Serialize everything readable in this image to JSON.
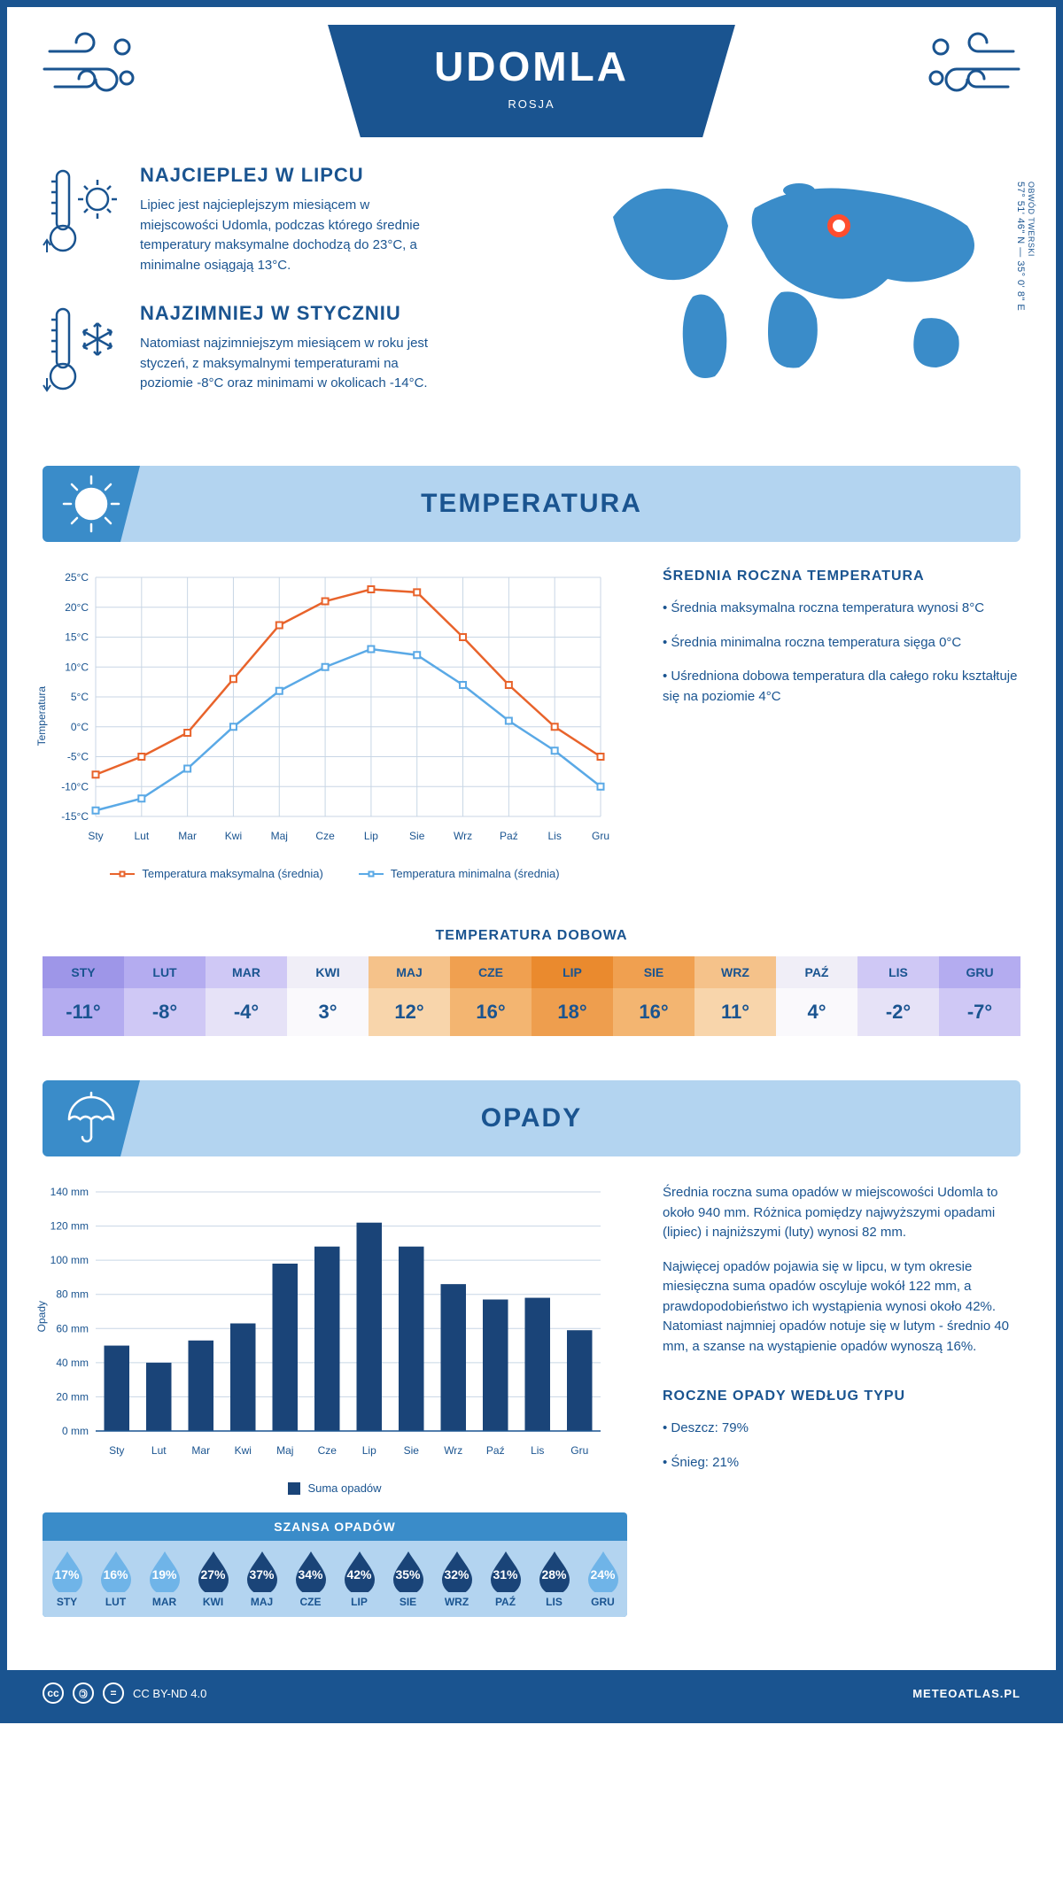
{
  "header": {
    "title": "UDOMLA",
    "subtitle": "ROSJA"
  },
  "coords": {
    "lat": "57° 51' 46\" N",
    "lon": "35° 0' 8\" E",
    "region": "OBWÓD TWERSKI"
  },
  "intro": {
    "warm": {
      "title": "NAJCIEPLEJ W LIPCU",
      "text": "Lipiec jest najcieplejszym miesiącem w miejscowości Udomla, podczas którego średnie temperatury maksymalne dochodzą do 23°C, a minimalne osiągają 13°C."
    },
    "cold": {
      "title": "NAJZIMNIEJ W STYCZNIU",
      "text": "Natomiast najzimniejszym miesiącem w roku jest styczeń, z maksymalnymi temperaturami na poziomie -8°C oraz minimami w okolicach -14°C."
    }
  },
  "temperature": {
    "banner": "TEMPERATURA",
    "side_title": "ŚREDNIA ROCZNA TEMPERATURA",
    "side_points": [
      "• Średnia maksymalna roczna temperatura wynosi 8°C",
      "• Średnia minimalna roczna temperatura sięga 0°C",
      "• Uśredniona dobowa temperatura dla całego roku kształtuje się na poziomie 4°C"
    ],
    "chart": {
      "type": "line",
      "months": [
        "Sty",
        "Lut",
        "Mar",
        "Kwi",
        "Maj",
        "Cze",
        "Lip",
        "Sie",
        "Wrz",
        "Paź",
        "Lis",
        "Gru"
      ],
      "ylim": [
        -15,
        25
      ],
      "ytick_step": 5,
      "ylabel": "Temperatura",
      "y_unit": "°C",
      "grid_color": "#c8d6e5",
      "background_color": "#ffffff",
      "series": [
        {
          "name": "Temperatura maksymalna (średnia)",
          "color": "#e8632b",
          "values": [
            -8,
            -5,
            -1,
            8,
            17,
            21,
            23,
            22.5,
            15,
            7,
            0,
            -5
          ]
        },
        {
          "name": "Temperatura minimalna (średnia)",
          "color": "#5aa9e6",
          "values": [
            -14,
            -12,
            -7,
            0,
            6,
            10,
            13,
            12,
            7,
            1,
            -4,
            -10
          ]
        }
      ]
    },
    "daily": {
      "title": "TEMPERATURA DOBOWA",
      "months": [
        "STY",
        "LUT",
        "MAR",
        "KWI",
        "MAJ",
        "CZE",
        "LIP",
        "SIE",
        "WRZ",
        "PAŹ",
        "LIS",
        "GRU"
      ],
      "values": [
        "-11°",
        "-8°",
        "-4°",
        "3°",
        "12°",
        "16°",
        "18°",
        "16°",
        "11°",
        "4°",
        "-2°",
        "-7°"
      ],
      "head_colors": [
        "#9e96e8",
        "#b4acf0",
        "#cfc8f5",
        "#f0eef7",
        "#f5c28a",
        "#f0a050",
        "#ea8a2e",
        "#f0a050",
        "#f5c28a",
        "#f0eef7",
        "#cfc8f5",
        "#b4acf0"
      ],
      "val_colors": [
        "#b4acf0",
        "#cfc8f5",
        "#e6e2f7",
        "#faf9fc",
        "#f8d5ab",
        "#f3b571",
        "#ee9e4e",
        "#f3b571",
        "#f8d5ab",
        "#faf9fc",
        "#e6e2f7",
        "#cfc8f5"
      ],
      "text_color": "#1a5490"
    }
  },
  "precipitation": {
    "banner": "OPADY",
    "side_p1": "Średnia roczna suma opadów w miejscowości Udomla to około 940 mm. Różnica pomiędzy najwyższymi opadami (lipiec) i najniższymi (luty) wynosi 82 mm.",
    "side_p2": "Najwięcej opadów pojawia się w lipcu, w tym okresie miesięczna suma opadów oscyluje wokół 122 mm, a prawdopodobieństwo ich wystąpienia wynosi około 42%. Natomiast najmniej opadów notuje się w lutym - średnio 40 mm, a szanse na wystąpienie opadów wynoszą 16%.",
    "type_title": "ROCZNE OPADY WEDŁUG TYPU",
    "type_items": [
      "• Deszcz: 79%",
      "• Śnieg: 21%"
    ],
    "chart": {
      "type": "bar",
      "months": [
        "Sty",
        "Lut",
        "Mar",
        "Kwi",
        "Maj",
        "Cze",
        "Lip",
        "Sie",
        "Wrz",
        "Paź",
        "Lis",
        "Gru"
      ],
      "ylim": [
        0,
        140
      ],
      "ytick_step": 20,
      "ylabel": "Opady",
      "y_unit": " mm",
      "values": [
        50,
        40,
        53,
        63,
        98,
        108,
        122,
        108,
        86,
        77,
        78,
        59
      ],
      "bar_color": "#1a4478",
      "grid_color": "#c8d6e5",
      "legend": "Suma opadów"
    },
    "chance": {
      "title": "SZANSA OPADÓW",
      "months": [
        "STY",
        "LUT",
        "MAR",
        "KWI",
        "MAJ",
        "CZE",
        "LIP",
        "SIE",
        "WRZ",
        "PAŹ",
        "LIS",
        "GRU"
      ],
      "values": [
        "17%",
        "16%",
        "19%",
        "27%",
        "37%",
        "34%",
        "42%",
        "35%",
        "32%",
        "31%",
        "28%",
        "24%"
      ],
      "drop_colors": [
        "#6fb4e8",
        "#6fb4e8",
        "#6fb4e8",
        "#1a4478",
        "#1a4478",
        "#1a4478",
        "#1a4478",
        "#1a4478",
        "#1a4478",
        "#1a4478",
        "#1a4478",
        "#6fb4e8"
      ],
      "bg_color": "#b3d4f0",
      "title_bg": "#3a8cc9"
    }
  },
  "footer": {
    "license": "CC BY-ND 4.0",
    "site": "METEOATLAS.PL"
  },
  "colors": {
    "primary": "#1a5490",
    "banner_bg": "#b3d4f0",
    "banner_icon_bg": "#3a8cc9",
    "map_fill": "#3a8cc9",
    "marker": "#ff4d2e"
  }
}
